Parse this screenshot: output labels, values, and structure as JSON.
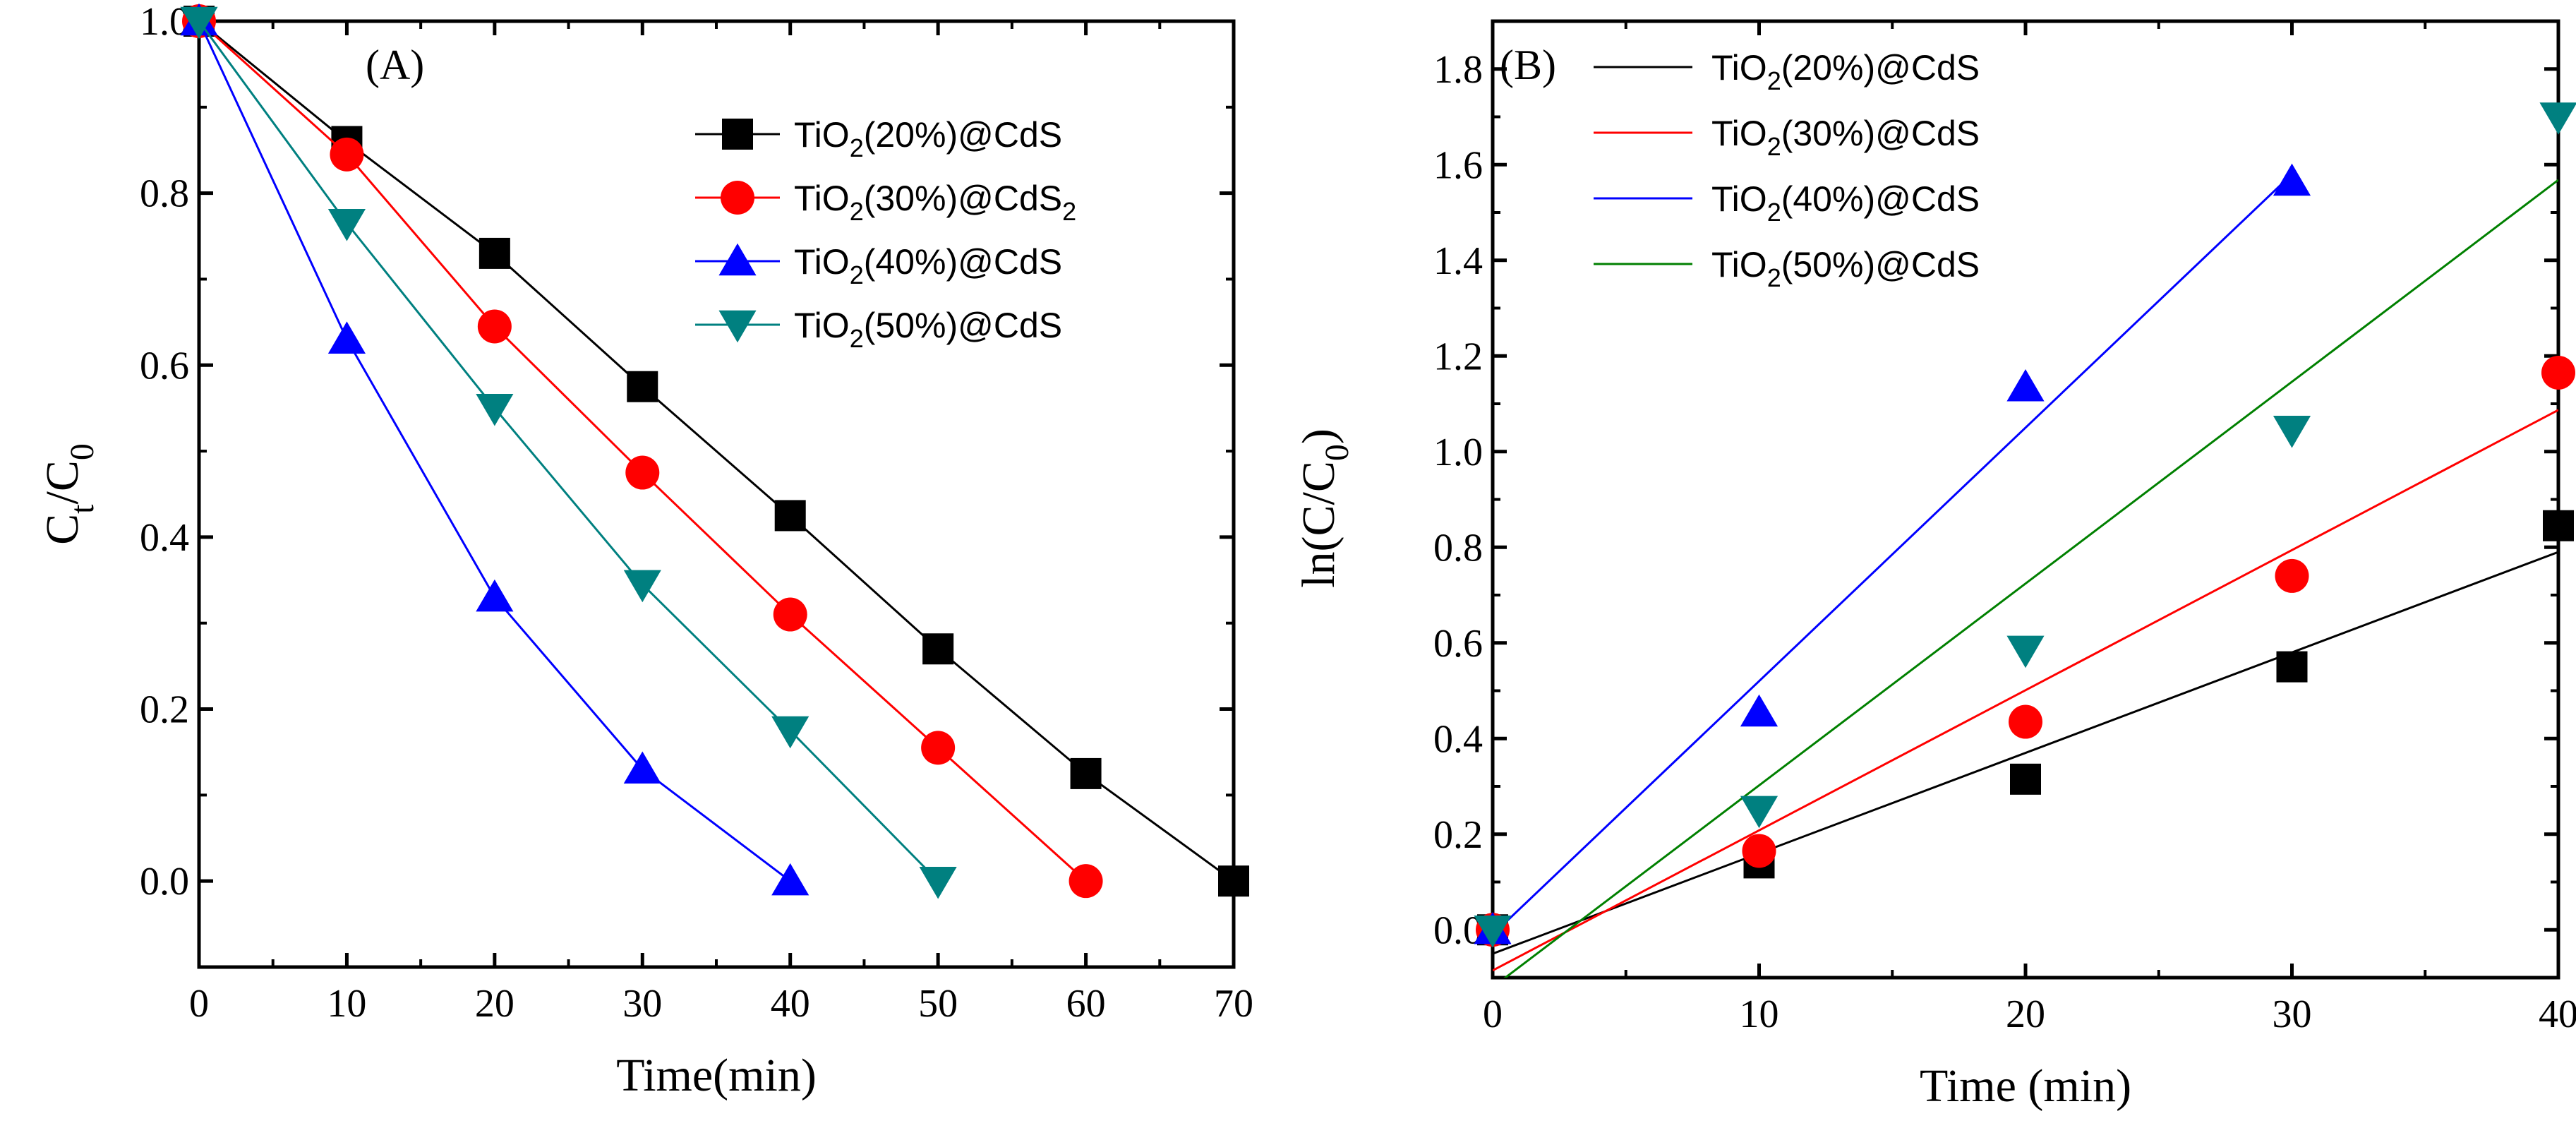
{
  "chart_data": [
    {
      "type": "line",
      "panel_label": "(A)",
      "xlabel": "Time(min)",
      "ylabel": {
        "main": "C",
        "sub1": "t",
        "slash": "/C",
        "sub2": "0"
      },
      "xlim": [
        0,
        70
      ],
      "ylim": [
        -0.1,
        1.0
      ],
      "xticks": [
        0,
        10,
        20,
        30,
        40,
        50,
        60,
        70
      ],
      "yticks": [
        0.0,
        0.2,
        0.4,
        0.6,
        0.8,
        1.0
      ],
      "xtick_labels": [
        "0",
        "10",
        "20",
        "30",
        "40",
        "50",
        "60",
        "70"
      ],
      "ytick_labels": [
        "0.0",
        "0.2",
        "0.4",
        "0.6",
        "0.8",
        "1.0"
      ],
      "legend_position": "top-right",
      "series": [
        {
          "name": "TiO2(20%)@CdS",
          "label": {
            "pre": "TiO",
            "sub": "2",
            "post": "(20%)@CdS",
            "tail_sub": ""
          },
          "marker": "square",
          "color": "#000000",
          "x": [
            0,
            10,
            20,
            30,
            40,
            50,
            60,
            70
          ],
          "y": [
            1.0,
            0.86,
            0.73,
            0.575,
            0.425,
            0.27,
            0.125,
            0.0
          ]
        },
        {
          "name": "TiO2(30%)@CdS2",
          "label": {
            "pre": "TiO",
            "sub": "2",
            "post": "(30%)@CdS",
            "tail_sub": "2"
          },
          "marker": "circle",
          "color": "#ff0000",
          "x": [
            0,
            10,
            20,
            30,
            40,
            50,
            60
          ],
          "y": [
            1.0,
            0.845,
            0.645,
            0.475,
            0.31,
            0.155,
            0.0
          ]
        },
        {
          "name": "TiO2(40%)@CdS",
          "label": {
            "pre": "TiO",
            "sub": "2",
            "post": "(40%)@CdS",
            "tail_sub": ""
          },
          "marker": "triangle-up",
          "color": "#0000ff",
          "x": [
            0,
            10,
            20,
            30,
            40
          ],
          "y": [
            1.0,
            0.63,
            0.33,
            0.13,
            0.0
          ]
        },
        {
          "name": "TiO2(50%)@CdS",
          "label": {
            "pre": "TiO",
            "sub": "2",
            "post": "(50%)@CdS",
            "tail_sub": ""
          },
          "marker": "triangle-down",
          "color": "#008080",
          "x": [
            0,
            10,
            20,
            30,
            40,
            50
          ],
          "y": [
            1.0,
            0.765,
            0.55,
            0.345,
            0.175,
            0.0
          ]
        }
      ]
    },
    {
      "type": "scatter",
      "panel_label": "(B)",
      "xlabel": "Time (min)",
      "ylabel": {
        "main": "ln(C/C",
        "sub": "0",
        "close": ")"
      },
      "xlim": [
        0,
        40
      ],
      "ylim": [
        -0.1,
        1.9
      ],
      "xticks": [
        0,
        10,
        20,
        30,
        40
      ],
      "yticks": [
        0.0,
        0.2,
        0.4,
        0.6,
        0.8,
        1.0,
        1.2,
        1.4,
        1.6,
        1.8
      ],
      "xtick_labels": [
        "0",
        "10",
        "20",
        "30",
        "40"
      ],
      "ytick_labels": [
        "0.0",
        "0.2",
        "0.4",
        "0.6",
        "0.8",
        "1.0",
        "1.2",
        "1.4",
        "1.6",
        "1.8"
      ],
      "legend_position": "top-left",
      "series": [
        {
          "name": "TiO2(20%)@CdS",
          "label": {
            "pre": "TiO",
            "sub": "2",
            "post": "(20%)@CdS"
          },
          "marker": "square",
          "color": "#000000",
          "line_color": "#000000",
          "x": [
            0,
            10,
            20,
            30,
            40
          ],
          "y": [
            0.0,
            0.14,
            0.315,
            0.55,
            0.845
          ],
          "fit": [
            -0.05,
            0.021
          ]
        },
        {
          "name": "TiO2(30%)@CdS",
          "label": {
            "pre": "TiO",
            "sub": "2",
            "post": "(30%)@CdS"
          },
          "marker": "circle",
          "color": "#ff0000",
          "line_color": "#ff0000",
          "x": [
            0,
            10,
            20,
            30,
            40
          ],
          "y": [
            0.0,
            0.165,
            0.435,
            0.74,
            1.165
          ],
          "fit": [
            -0.085,
            0.0293
          ]
        },
        {
          "name": "TiO2(40%)@CdS",
          "label": {
            "pre": "TiO",
            "sub": "2",
            "post": "(40%)@CdS"
          },
          "marker": "triangle-up",
          "color": "#0000ff",
          "line_color": "#0000ff",
          "x": [
            0,
            10,
            20,
            30
          ],
          "y": [
            0.0,
            0.455,
            1.135,
            1.565
          ],
          "fit": [
            -0.01,
            0.053
          ],
          "fit_range": [
            0,
            30
          ]
        },
        {
          "name": "TiO2(50%)@CdS",
          "label": {
            "pre": "TiO",
            "sub": "2",
            "post": "(50%)@CdS"
          },
          "marker": "triangle-down",
          "color": "#008080",
          "line_color": "#008000",
          "x": [
            0,
            10,
            20,
            30,
            40
          ],
          "y": [
            0.0,
            0.25,
            0.585,
            1.045,
            1.7
          ],
          "fit": [
            -0.12,
            0.0422
          ]
        }
      ]
    }
  ]
}
